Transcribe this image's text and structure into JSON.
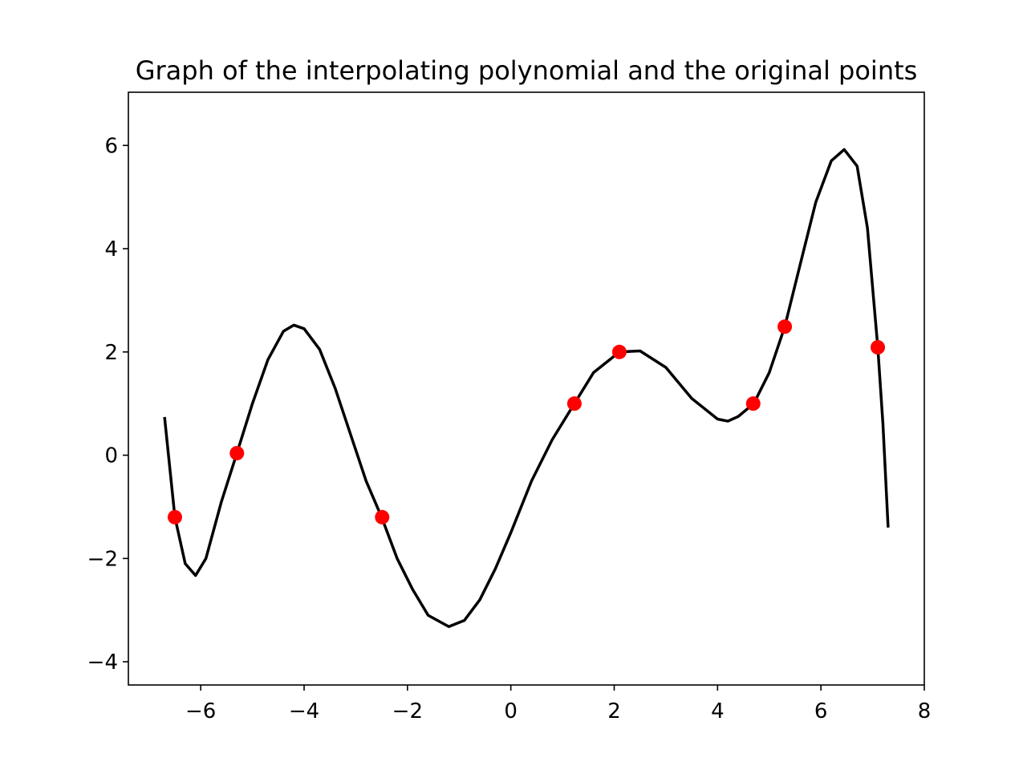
{
  "chart_data": {
    "type": "line",
    "title": "Graph of the interpolating polynomial and the original points",
    "xlim": [
      -7.4,
      8
    ],
    "ylim": [
      -4.45,
      7.03
    ],
    "xticks": [
      {
        "value": -6,
        "label": "−6"
      },
      {
        "value": -4,
        "label": "−4"
      },
      {
        "value": -2,
        "label": "−2"
      },
      0,
      2,
      4,
      6,
      8
    ],
    "yticks": [
      {
        "value": -4,
        "label": "−4"
      },
      {
        "value": -2,
        "label": "−2"
      },
      0,
      2,
      4,
      6
    ],
    "series": [
      {
        "type": "line",
        "color": "#000000",
        "x": [
          -6.7,
          -6.5,
          -6.3,
          -6.1,
          -5.9,
          -5.6,
          -5.3,
          -5.0,
          -4.7,
          -4.4,
          -4.2,
          -4.0,
          -3.7,
          -3.4,
          -3.1,
          -2.8,
          -2.5,
          -2.2,
          -1.9,
          -1.6,
          -1.2,
          -0.9,
          -0.6,
          -0.3,
          0.0,
          0.4,
          0.8,
          1.23,
          1.6,
          2.1,
          2.5,
          3.0,
          3.5,
          4.0,
          4.2,
          4.4,
          4.7,
          5.0,
          5.3,
          5.6,
          5.9,
          6.2,
          6.45,
          6.7,
          6.9,
          7.1,
          7.2,
          7.3
        ],
        "values": [
          0.74,
          -1.2,
          -2.1,
          -2.33,
          -2.0,
          -0.9,
          0.04,
          1.0,
          1.85,
          2.4,
          2.52,
          2.45,
          2.05,
          1.3,
          0.4,
          -0.5,
          -1.2,
          -2.0,
          -2.6,
          -3.1,
          -3.32,
          -3.2,
          -2.8,
          -2.2,
          -1.5,
          -0.5,
          0.3,
          1.0,
          1.6,
          2.0,
          2.02,
          1.7,
          1.1,
          0.7,
          0.66,
          0.75,
          1.0,
          1.6,
          2.49,
          3.7,
          4.9,
          5.7,
          5.92,
          5.6,
          4.4,
          2.09,
          0.6,
          -1.4
        ]
      },
      {
        "type": "scatter",
        "color": "#ff0000",
        "x": [
          -6.5,
          -5.3,
          -2.49,
          1.23,
          2.1,
          4.69,
          5.3,
          7.1
        ],
        "values": [
          -1.2,
          0.04,
          -1.2,
          1.0,
          2.0,
          1.0,
          2.49,
          2.09
        ]
      }
    ]
  }
}
